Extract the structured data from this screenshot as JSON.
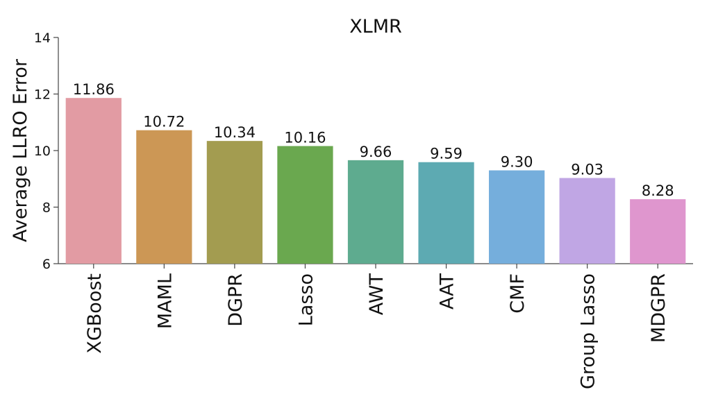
{
  "chart_data": {
    "type": "bar",
    "title": "XLMR",
    "xlabel": "",
    "ylabel": "Average LLRO Error",
    "ylim": [
      6,
      14
    ],
    "yticks": [
      6,
      8,
      10,
      12,
      14
    ],
    "grid": false,
    "categories": [
      "XGBoost",
      "MAML",
      "DGPR",
      "Lasso",
      "AWT",
      "AAT",
      "CMF",
      "Group Lasso",
      "MDGPR"
    ],
    "values": [
      11.86,
      10.72,
      10.34,
      10.16,
      9.66,
      9.59,
      9.3,
      9.03,
      8.28
    ],
    "value_labels": [
      "11.86",
      "10.72",
      "10.34",
      "10.16",
      "9.66",
      "9.59",
      "9.30",
      "9.03",
      "8.28"
    ],
    "colors": [
      "#e29ba3",
      "#cc9755",
      "#a39c50",
      "#6aa84f",
      "#5eab8f",
      "#5daab2",
      "#75aedc",
      "#c0a6e4",
      "#df96ce"
    ]
  }
}
